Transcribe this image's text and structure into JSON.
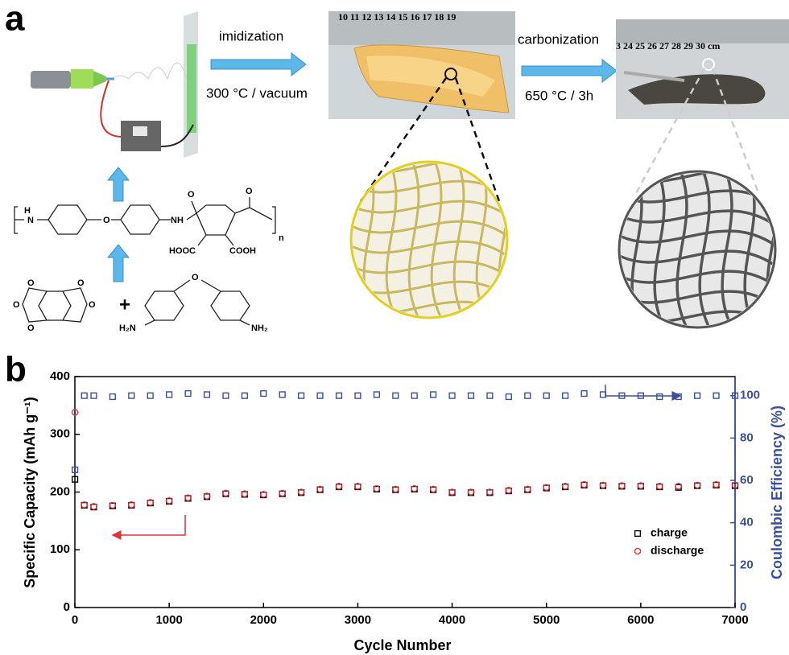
{
  "panel_a": {
    "label": "a",
    "step1": {
      "top": "imidization",
      "bottom": "300 °C / vacuum"
    },
    "step2": {
      "top": "carbonization",
      "bottom": "650 °C / 3h"
    },
    "ruler1": "10 11 12 13 14 15 16 17 18 19",
    "ruler2": "3 24 25 26 27 28 29 30 cm",
    "polymer": {
      "h": "H",
      "n_atom": "N",
      "ether": "O",
      "amide": "NH",
      "carbonyl1": "O",
      "carbonyl2": "O",
      "acid1": "HOOC",
      "acid2": "COOH",
      "repeat": "n"
    },
    "monomers": {
      "o1": "O",
      "o2": "O",
      "o3": "O",
      "o4": "O",
      "o5": "O",
      "plus": "+",
      "ether": "O",
      "amine1": "H₂N",
      "amine2": "NH₂"
    }
  },
  "chart_data": {
    "type": "scatter",
    "panel_label": "b",
    "x_label": "Cycle Number",
    "y_label": "Specific Capacity (mAh g⁻¹)",
    "y2_label": "Coulombic Efficiency (%)",
    "xlim": [
      0,
      7000
    ],
    "xticks": [
      0,
      1000,
      2000,
      3000,
      4000,
      5000,
      6000,
      7000
    ],
    "ylim": [
      0,
      400
    ],
    "yticks": [
      0,
      100,
      200,
      300,
      400
    ],
    "y2lim": [
      0,
      109
    ],
    "y2ticks": [
      0,
      20,
      40,
      60,
      80,
      100
    ],
    "x": [
      1,
      100,
      200,
      400,
      600,
      800,
      1000,
      1200,
      1400,
      1600,
      1800,
      2000,
      2200,
      2400,
      2600,
      2800,
      3000,
      3200,
      3400,
      3600,
      3800,
      4000,
      4200,
      4400,
      4600,
      4800,
      5000,
      5200,
      5400,
      5600,
      5800,
      6000,
      6200,
      6400,
      6600,
      6800,
      7000
    ],
    "series": [
      {
        "name": "charge",
        "color": "#000000",
        "marker": "square",
        "values": [
          222,
          177,
          174,
          176,
          177,
          181,
          184,
          189,
          192,
          197,
          196,
          195,
          197,
          199,
          204,
          209,
          209,
          205,
          204,
          205,
          204,
          199,
          199,
          199,
          202,
          204,
          207,
          209,
          212,
          211,
          210,
          210,
          209,
          208,
          211,
          212,
          211
        ]
      },
      {
        "name": "discharge",
        "color": "#e0303a",
        "marker": "circle",
        "values": [
          338,
          178,
          175,
          177,
          178,
          182,
          185,
          190,
          193,
          198,
          197,
          196,
          198,
          200,
          205,
          210,
          210,
          206,
          205,
          206,
          205,
          200,
          200,
          200,
          203,
          205,
          208,
          210,
          213,
          212,
          211,
          211,
          210,
          210,
          212,
          213,
          212
        ]
      },
      {
        "color": "#3a4fa0",
        "marker": "square",
        "axis": "y2",
        "values": [
          65,
          100,
          100,
          99.5,
          100,
          100,
          100.5,
          101,
          100.5,
          100,
          100,
          101,
          100.5,
          100,
          100,
          100,
          100,
          100.5,
          100,
          100,
          100.5,
          100,
          100,
          100,
          99.5,
          100,
          100,
          100,
          101,
          100.5,
          100,
          100,
          99.5,
          99.5,
          100,
          100,
          100
        ]
      }
    ]
  }
}
